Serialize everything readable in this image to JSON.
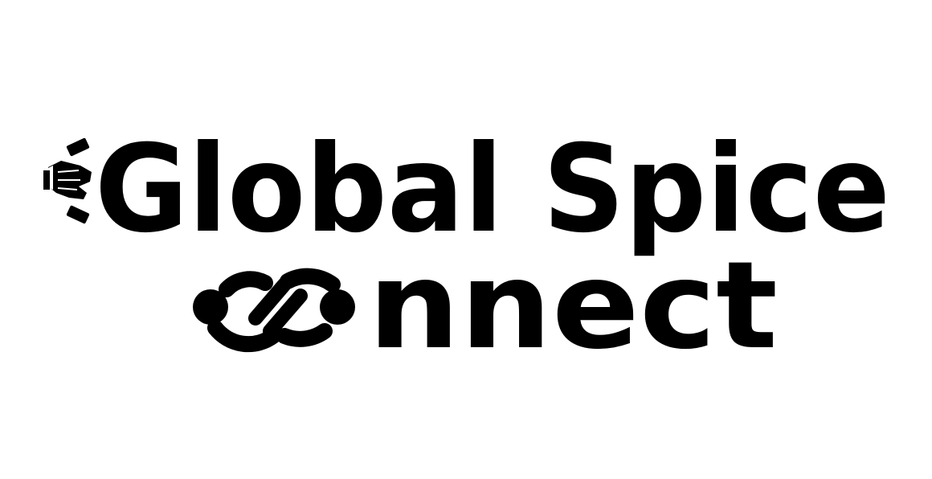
{
  "logo": {
    "line1": "Global Spice",
    "line2_suffix": "nnect",
    "full_name": "Global Spice Connect",
    "icons": [
      "handshake-icon",
      "infinity-link-icon"
    ],
    "colors": {
      "foreground": "#000000",
      "background": "#ffffff"
    }
  }
}
